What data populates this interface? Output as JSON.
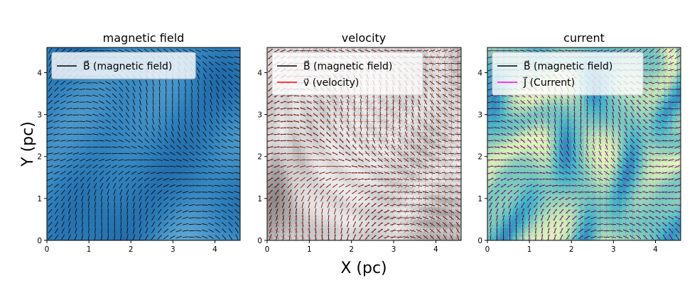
{
  "figure": {
    "xlabel": "X (pc)",
    "ylabel": "Y (pc)"
  },
  "chart_data": [
    {
      "type": "heatmap",
      "title": "magnetic field",
      "xlim": [
        0,
        4.6
      ],
      "ylim": [
        0,
        4.6
      ],
      "xticks": [
        0,
        1,
        2,
        3,
        4
      ],
      "yticks": [
        0,
        1,
        2,
        3,
        4
      ],
      "colormap": "blues",
      "vector_fields": [
        "B"
      ],
      "legend": {
        "location": "upper-left",
        "entries": [
          {
            "label": "B⃗ (magnetic field)",
            "color": "#000000"
          }
        ]
      }
    },
    {
      "type": "heatmap",
      "title": "velocity",
      "xlim": [
        0,
        4.6
      ],
      "ylim": [
        0,
        4.6
      ],
      "xticks": [
        0,
        1,
        2,
        3,
        4
      ],
      "yticks": [
        0,
        1,
        2,
        3,
        4
      ],
      "colormap": "greys",
      "vector_fields": [
        "B",
        "v"
      ],
      "legend": {
        "location": "upper-left",
        "entries": [
          {
            "label": "B⃗ (magnetic field)",
            "color": "#000000"
          },
          {
            "label": "v⃗ (velocity)",
            "color": "#ff0000"
          }
        ]
      }
    },
    {
      "type": "heatmap",
      "title": "current",
      "xlim": [
        0,
        4.6
      ],
      "ylim": [
        0,
        4.6
      ],
      "xticks": [
        0,
        1,
        2,
        3,
        4
      ],
      "yticks": [
        0,
        1,
        2,
        3,
        4
      ],
      "colormap": "yellow-green-blue",
      "vector_fields": [
        "B",
        "J"
      ],
      "legend": {
        "location": "upper-left",
        "entries": [
          {
            "label": "B⃗ (magnetic field)",
            "color": "#000000"
          },
          {
            "label": "J⃗ (Current)",
            "color": "#ff00ff"
          }
        ]
      }
    }
  ]
}
